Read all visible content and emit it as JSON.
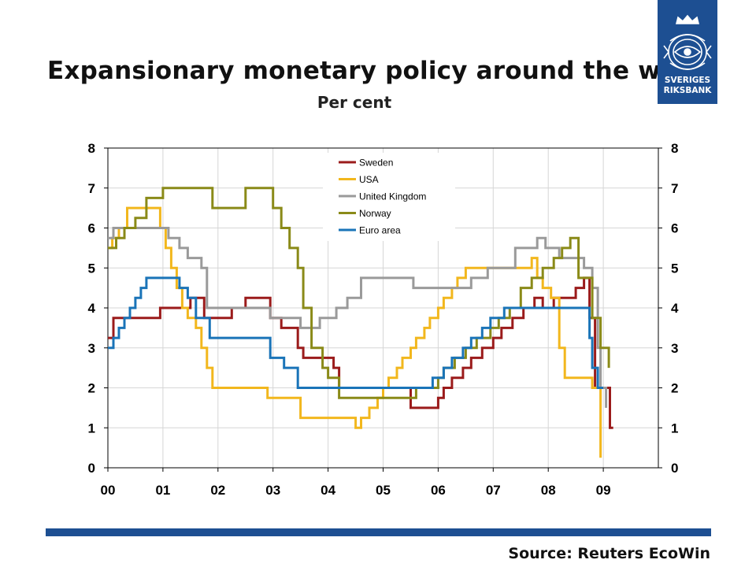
{
  "slide": {
    "title": "Expansionary monetary policy around the world",
    "subtitle": "Per cent",
    "source": "Source: Reuters EcoWin",
    "logo_line1": "SVERIGES",
    "logo_line2": "RIKSBANK",
    "accent_color": "#1d4f92"
  },
  "chart_data": {
    "type": "line",
    "title": "",
    "xlabel": "",
    "ylabel": "",
    "xlim": [
      2000,
      2010
    ],
    "ylim": [
      0,
      8
    ],
    "x_tick_labels": [
      "00",
      "01",
      "02",
      "03",
      "04",
      "05",
      "06",
      "07",
      "08",
      "09"
    ],
    "y_tick_labels": [
      "0",
      "1",
      "2",
      "3",
      "4",
      "5",
      "6",
      "7",
      "8"
    ],
    "grid": true,
    "legend_position": "top-center",
    "series": [
      {
        "name": "Sweden",
        "color": "#9b1b1b",
        "x": [
          2000.0,
          2000.1,
          2000.95,
          2001.5,
          2001.75,
          2002.25,
          2002.5,
          2002.95,
          2003.15,
          2003.45,
          2003.55,
          2004.1,
          2004.2,
          2004.3,
          2005.5,
          2006.0,
          2006.1,
          2006.25,
          2006.45,
          2006.6,
          2006.8,
          2007.0,
          2007.15,
          2007.35,
          2007.55,
          2007.75,
          2007.9,
          2008.1,
          2008.5,
          2008.65,
          2008.75,
          2008.85,
          2008.95,
          2009.05,
          2009.12,
          2009.18
        ],
        "values": [
          3.25,
          3.75,
          4.0,
          4.25,
          3.75,
          4.0,
          4.25,
          3.75,
          3.5,
          3.0,
          2.75,
          2.5,
          2.0,
          2.0,
          1.5,
          1.75,
          2.0,
          2.25,
          2.5,
          2.75,
          3.0,
          3.25,
          3.5,
          3.75,
          4.0,
          4.25,
          4.0,
          4.25,
          4.5,
          4.75,
          3.75,
          2.0,
          2.0,
          2.0,
          1.0,
          1.0
        ]
      },
      {
        "name": "USA",
        "color": "#f2b71d",
        "x": [
          2000.0,
          2000.08,
          2000.2,
          2000.35,
          2000.95,
          2001.05,
          2001.15,
          2001.25,
          2001.35,
          2001.45,
          2001.6,
          2001.7,
          2001.8,
          2001.9,
          2002.9,
          2003.5,
          2004.5,
          2004.6,
          2004.75,
          2004.9,
          2005.0,
          2005.1,
          2005.25,
          2005.35,
          2005.5,
          2005.6,
          2005.75,
          2005.85,
          2006.0,
          2006.1,
          2006.25,
          2006.35,
          2006.5,
          2007.7,
          2007.8,
          2007.9,
          2008.05,
          2008.2,
          2008.3,
          2008.8,
          2008.95
        ],
        "values": [
          5.5,
          5.75,
          6.0,
          6.5,
          6.0,
          5.5,
          5.0,
          4.5,
          4.0,
          3.75,
          3.5,
          3.0,
          2.5,
          2.0,
          1.75,
          1.25,
          1.0,
          1.25,
          1.5,
          1.75,
          2.0,
          2.25,
          2.5,
          2.75,
          3.0,
          3.25,
          3.5,
          3.75,
          4.0,
          4.25,
          4.5,
          4.75,
          5.0,
          5.25,
          4.75,
          4.5,
          4.25,
          3.0,
          2.25,
          2.0,
          0.25
        ]
      },
      {
        "name": "United Kingdom",
        "color": "#9a9a9a",
        "x": [
          2000.0,
          2000.1,
          2001.1,
          2001.3,
          2001.45,
          2001.7,
          2001.8,
          2002.95,
          2003.5,
          2003.85,
          2004.15,
          2004.35,
          2004.6,
          2005.55,
          2006.6,
          2006.9,
          2007.4,
          2007.8,
          2007.95,
          2008.2,
          2008.65,
          2008.8,
          2008.9,
          2008.95,
          2009.05
        ],
        "values": [
          5.75,
          6.0,
          5.75,
          5.5,
          5.25,
          5.0,
          4.0,
          3.75,
          3.5,
          3.75,
          4.0,
          4.25,
          4.75,
          4.5,
          4.75,
          5.0,
          5.5,
          5.75,
          5.5,
          5.25,
          5.0,
          4.5,
          3.0,
          2.0,
          1.5
        ]
      },
      {
        "name": "Norway",
        "color": "#8a8a18",
        "x": [
          2000.0,
          2000.15,
          2000.3,
          2000.5,
          2000.7,
          2001.0,
          2001.9,
          2002.5,
          2003.0,
          2003.15,
          2003.3,
          2003.45,
          2003.55,
          2003.7,
          2003.9,
          2004.0,
          2004.2,
          2005.6,
          2006.0,
          2006.1,
          2006.3,
          2006.5,
          2006.7,
          2006.95,
          2007.1,
          2007.3,
          2007.5,
          2007.7,
          2007.9,
          2008.1,
          2008.25,
          2008.4,
          2008.55,
          2008.8,
          2008.95,
          2009.1
        ],
        "values": [
          5.5,
          5.75,
          6.0,
          6.25,
          6.75,
          7.0,
          6.5,
          7.0,
          6.5,
          6.0,
          5.5,
          5.0,
          4.0,
          3.0,
          2.5,
          2.25,
          1.75,
          2.0,
          2.25,
          2.5,
          2.75,
          3.0,
          3.25,
          3.5,
          3.75,
          4.0,
          4.5,
          4.75,
          5.0,
          5.25,
          5.5,
          5.75,
          4.75,
          3.75,
          3.0,
          2.5
        ]
      },
      {
        "name": "Euro area",
        "color": "#1a74b8",
        "x": [
          2000.0,
          2000.1,
          2000.2,
          2000.3,
          2000.4,
          2000.5,
          2000.6,
          2000.7,
          2001.3,
          2001.45,
          2001.6,
          2001.85,
          2002.95,
          2003.2,
          2003.45,
          2005.9,
          2006.1,
          2006.25,
          2006.45,
          2006.6,
          2006.8,
          2006.95,
          2007.2,
          2007.4,
          2007.7,
          2008.75,
          2008.8,
          2008.9,
          2009.0
        ],
        "values": [
          3.0,
          3.25,
          3.5,
          3.75,
          4.0,
          4.25,
          4.5,
          4.75,
          4.5,
          4.25,
          3.75,
          3.25,
          2.75,
          2.5,
          2.0,
          2.25,
          2.5,
          2.75,
          3.0,
          3.25,
          3.5,
          3.75,
          4.0,
          4.0,
          4.0,
          3.25,
          2.5,
          2.0,
          2.0
        ]
      }
    ]
  }
}
